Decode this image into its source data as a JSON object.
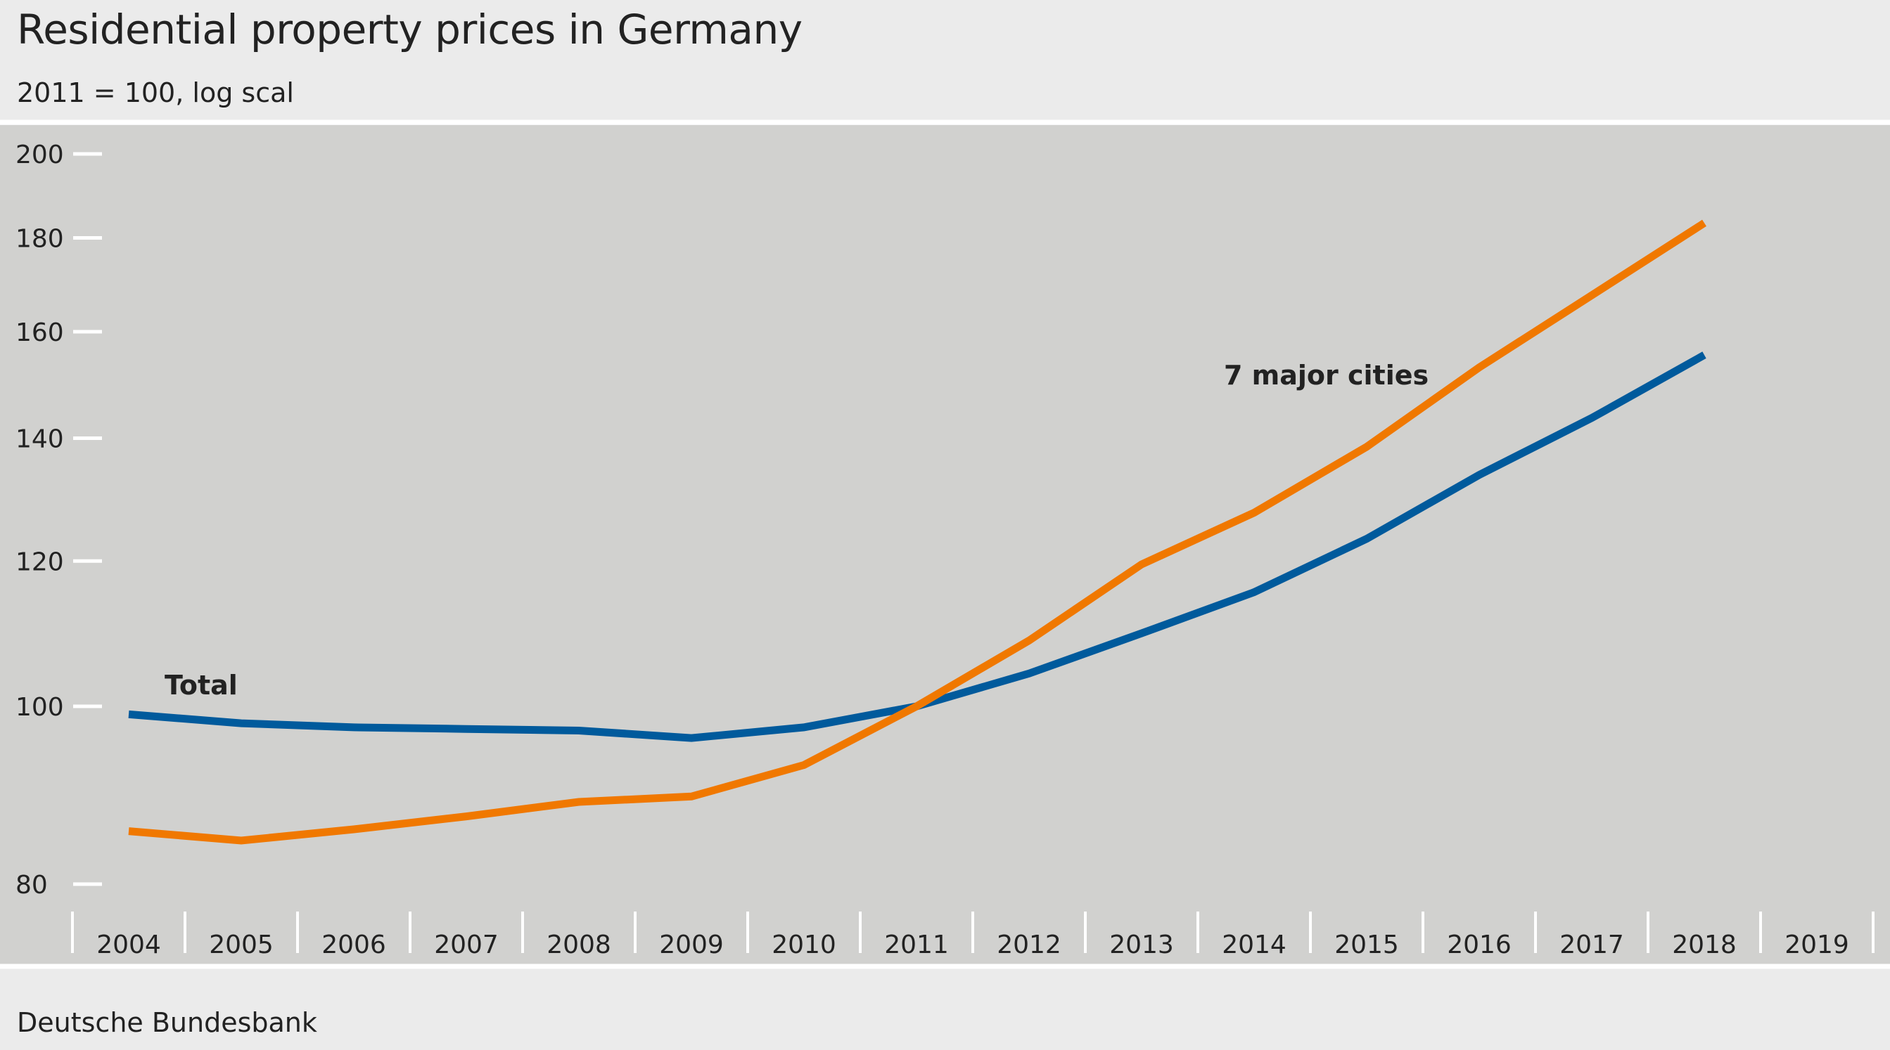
{
  "title": "Residential property prices in Germany",
  "subtitle": "2011 = 100, log scal",
  "source": "Deutsche Bundesbank",
  "colors": {
    "background": "#ebebeb",
    "plot_background": "#d1d1cf",
    "total": "#005a9c",
    "cities": "#f07800",
    "separator": "#ffffff"
  },
  "chart_data": {
    "type": "line",
    "title": "Residential property prices in Germany",
    "subtitle": "2011 = 100, log scal",
    "x": [
      2004,
      2005,
      2006,
      2007,
      2008,
      2009,
      2010,
      2011,
      2012,
      2013,
      2014,
      2015,
      2016,
      2017,
      2018
    ],
    "x_tick_labels": [
      "2004",
      "2005",
      "2006",
      "2007",
      "2008",
      "2009",
      "2010",
      "2011",
      "2012",
      "2013",
      "2014",
      "2015",
      "2016",
      "2017",
      "2018",
      "2019"
    ],
    "y_scale": "log",
    "y_ticks": [
      80,
      100,
      120,
      140,
      160,
      180,
      200
    ],
    "ylim": [
      78,
      201
    ],
    "grid": false,
    "series": [
      {
        "name": "Total",
        "color": "#005a9c",
        "values": [
          99.0,
          97.9,
          97.4,
          97.2,
          97.0,
          96.1,
          97.4,
          100.0,
          104.2,
          109.6,
          115.4,
          123.4,
          133.7,
          143.6,
          155.4
        ]
      },
      {
        "name": "7 major cities",
        "color": "#f07800",
        "values": [
          85.5,
          84.5,
          85.7,
          87.1,
          88.7,
          89.3,
          92.9,
          100.0,
          108.6,
          119.5,
          127.5,
          138.5,
          153.0,
          167.5,
          183.4
        ]
      }
    ]
  }
}
